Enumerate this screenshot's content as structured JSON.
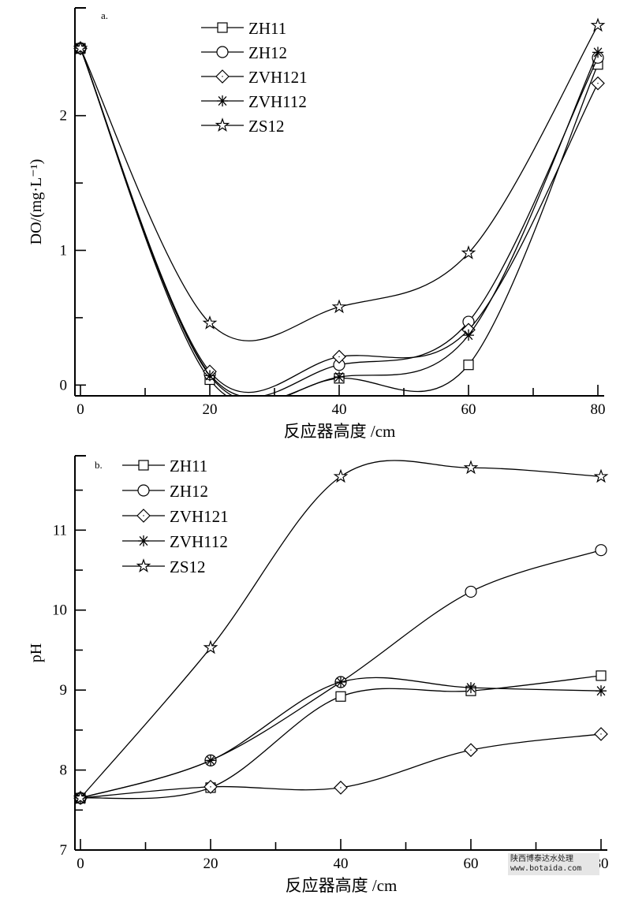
{
  "chart_data": [
    {
      "type": "line",
      "panel_label": "a.",
      "xlabel": "反应器高度 /cm",
      "ylabel": "DO/(mg·L⁻¹)",
      "x": [
        0,
        20,
        40,
        60,
        80
      ],
      "xlim": [
        0,
        80
      ],
      "ylim": [
        -0.08,
        2.8
      ],
      "xticks": [
        "0",
        "20",
        "40",
        "60",
        "80"
      ],
      "yticks": [
        "0",
        "1",
        "2"
      ],
      "ytick_values": [
        0,
        1,
        2
      ],
      "smooth": true,
      "grid": false,
      "legend": "top-center",
      "series": [
        {
          "name": "ZH11",
          "marker": "square",
          "values": [
            2.5,
            0.04,
            0.05,
            0.15,
            2.38
          ]
        },
        {
          "name": "ZH12",
          "marker": "circle",
          "values": [
            2.5,
            0.08,
            0.15,
            0.47,
            2.43
          ]
        },
        {
          "name": "ZVH121",
          "marker": "diamond",
          "values": [
            2.5,
            0.1,
            0.21,
            0.41,
            2.24
          ]
        },
        {
          "name": "ZVH112",
          "marker": "asterisk",
          "values": [
            2.5,
            0.07,
            0.06,
            0.37,
            2.47
          ]
        },
        {
          "name": "ZS12",
          "marker": "star",
          "values": [
            2.5,
            0.46,
            0.58,
            0.98,
            2.67
          ]
        }
      ]
    },
    {
      "type": "line",
      "panel_label": "b.",
      "xlabel": "反应器高度 /cm",
      "ylabel": "pH",
      "x": [
        0,
        20,
        40,
        60,
        80
      ],
      "xlim": [
        0,
        80
      ],
      "ylim": [
        7,
        11.93
      ],
      "xticks": [
        "0",
        "20",
        "40",
        "60",
        "80"
      ],
      "yticks": [
        "7",
        "8",
        "9",
        "10",
        "11"
      ],
      "ytick_values": [
        7,
        8,
        9,
        10,
        11
      ],
      "smooth": true,
      "grid": false,
      "legend": "top-left",
      "series": [
        {
          "name": "ZH11",
          "marker": "square",
          "values": [
            7.65,
            7.78,
            8.92,
            8.99,
            9.18
          ]
        },
        {
          "name": "ZH12",
          "marker": "circle",
          "values": [
            7.65,
            8.12,
            9.1,
            10.23,
            10.75
          ]
        },
        {
          "name": "ZVH121",
          "marker": "diamond",
          "values": [
            7.65,
            7.79,
            7.78,
            8.25,
            8.45
          ]
        },
        {
          "name": "ZVH112",
          "marker": "asterisk",
          "values": [
            7.65,
            8.12,
            9.1,
            9.03,
            8.99
          ]
        },
        {
          "name": "ZS12",
          "marker": "star",
          "values": [
            7.65,
            9.53,
            11.67,
            11.78,
            11.67
          ]
        }
      ]
    }
  ],
  "watermark": {
    "line1": "陕西博泰达水处理",
    "line2": "www.botaida.com"
  }
}
